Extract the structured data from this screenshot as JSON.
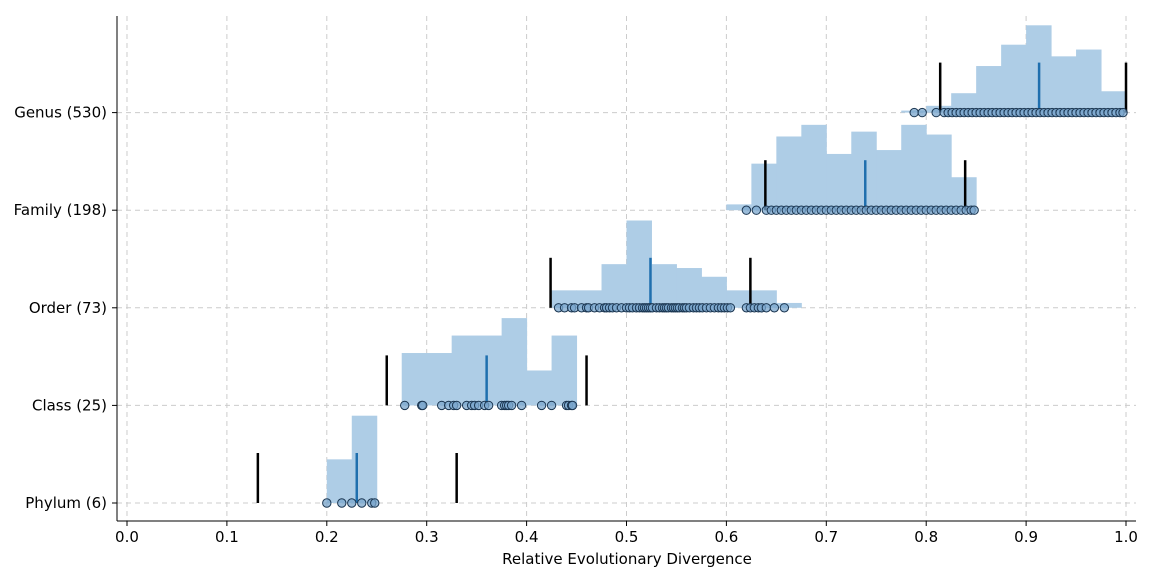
{
  "chart_data": {
    "type": "histogram-strip",
    "xlabel": "Relative Evolutionary Divergence",
    "xlim": [
      -0.01,
      1.01
    ],
    "xticks": [
      0.0,
      0.1,
      0.2,
      0.3,
      0.4,
      0.5,
      0.6,
      0.7,
      0.8,
      0.9,
      1.0
    ],
    "xtick_labels": [
      "0.0",
      "0.1",
      "0.2",
      "0.3",
      "0.4",
      "0.5",
      "0.6",
      "0.7",
      "0.8",
      "0.9",
      "1.0"
    ],
    "grid": true,
    "colors": {
      "hist": "#aecde6",
      "median": "#1f6fae",
      "bounds": "#000000",
      "points": "#7aa6cc"
    },
    "ranks": [
      {
        "label": "Phylum (6)",
        "median": 0.23,
        "lower_bound": 0.131,
        "upper_bound": 0.33,
        "hist": {
          "start": 0.2,
          "width": 0.025,
          "heights": [
            0.45,
            0.9
          ]
        },
        "points": [
          0.2,
          0.215,
          0.225,
          0.235,
          0.245,
          0.248
        ]
      },
      {
        "label": "Class (25)",
        "median": 0.36,
        "lower_bound": 0.26,
        "upper_bound": 0.46,
        "hist": {
          "start": 0.275,
          "width": 0.025,
          "heights": [
            0.54,
            0.54,
            0.72,
            0.72,
            0.9,
            0.36,
            0.72
          ]
        },
        "points": [
          0.278,
          0.295,
          0.296,
          0.315,
          0.322,
          0.327,
          0.33,
          0.34,
          0.345,
          0.348,
          0.352,
          0.358,
          0.362,
          0.375,
          0.378,
          0.38,
          0.382,
          0.385,
          0.395,
          0.415,
          0.425,
          0.44,
          0.442,
          0.445,
          0.446
        ]
      },
      {
        "label": "Order (73)",
        "median": 0.524,
        "lower_bound": 0.424,
        "upper_bound": 0.624,
        "hist": {
          "start": 0.425,
          "width": 0.025,
          "heights": [
            0.18,
            0.18,
            0.45,
            0.9,
            0.45,
            0.41,
            0.32,
            0.18,
            0.18,
            0.05
          ]
        },
        "points": [
          0.432,
          0.438,
          0.445,
          0.448,
          0.455,
          0.46,
          0.462,
          0.468,
          0.473,
          0.478,
          0.48,
          0.483,
          0.486,
          0.49,
          0.495,
          0.5,
          0.503,
          0.506,
          0.51,
          0.513,
          0.516,
          0.518,
          0.52,
          0.522,
          0.524,
          0.526,
          0.53,
          0.533,
          0.536,
          0.538,
          0.54,
          0.542,
          0.545,
          0.547,
          0.549,
          0.551,
          0.553,
          0.556,
          0.558,
          0.56,
          0.563,
          0.567,
          0.57,
          0.573,
          0.576,
          0.58,
          0.584,
          0.588,
          0.592,
          0.595,
          0.598,
          0.601,
          0.604,
          0.62,
          0.624,
          0.628,
          0.632,
          0.635,
          0.64,
          0.648,
          0.658
        ]
      },
      {
        "label": "Family (198)",
        "median": 0.739,
        "lower_bound": 0.639,
        "upper_bound": 0.839,
        "hist": {
          "start": 0.6,
          "width": 0.025,
          "heights": [
            0.06,
            0.48,
            0.76,
            0.88,
            0.58,
            0.81,
            0.62,
            0.88,
            0.78,
            0.34
          ]
        },
        "points": [
          0.62,
          0.63,
          0.64,
          0.645,
          0.65,
          0.655,
          0.66,
          0.665,
          0.67,
          0.675,
          0.68,
          0.685,
          0.69,
          0.695,
          0.7,
          0.705,
          0.71,
          0.715,
          0.72,
          0.725,
          0.73,
          0.735,
          0.74,
          0.745,
          0.75,
          0.755,
          0.76,
          0.765,
          0.77,
          0.775,
          0.78,
          0.785,
          0.79,
          0.795,
          0.8,
          0.805,
          0.81,
          0.815,
          0.82,
          0.825,
          0.83,
          0.835,
          0.84,
          0.845,
          0.848
        ]
      },
      {
        "label": "Genus (530)",
        "median": 0.913,
        "lower_bound": 0.814,
        "upper_bound": 1.0,
        "hist": {
          "start": 0.775,
          "width": 0.025,
          "heights": [
            0.01,
            0.07,
            0.2,
            0.48,
            0.7,
            0.9,
            0.58,
            0.65,
            0.22
          ]
        },
        "points": [
          0.788,
          0.796,
          0.81,
          0.818,
          0.822,
          0.826,
          0.83,
          0.834,
          0.838,
          0.842,
          0.846,
          0.85,
          0.854,
          0.858,
          0.862,
          0.866,
          0.87,
          0.874,
          0.878,
          0.882,
          0.886,
          0.89,
          0.894,
          0.898,
          0.902,
          0.906,
          0.91,
          0.914,
          0.918,
          0.922,
          0.926,
          0.93,
          0.934,
          0.938,
          0.942,
          0.946,
          0.95,
          0.954,
          0.958,
          0.962,
          0.966,
          0.97,
          0.974,
          0.978,
          0.982,
          0.986,
          0.99,
          0.994,
          0.997
        ]
      }
    ]
  }
}
